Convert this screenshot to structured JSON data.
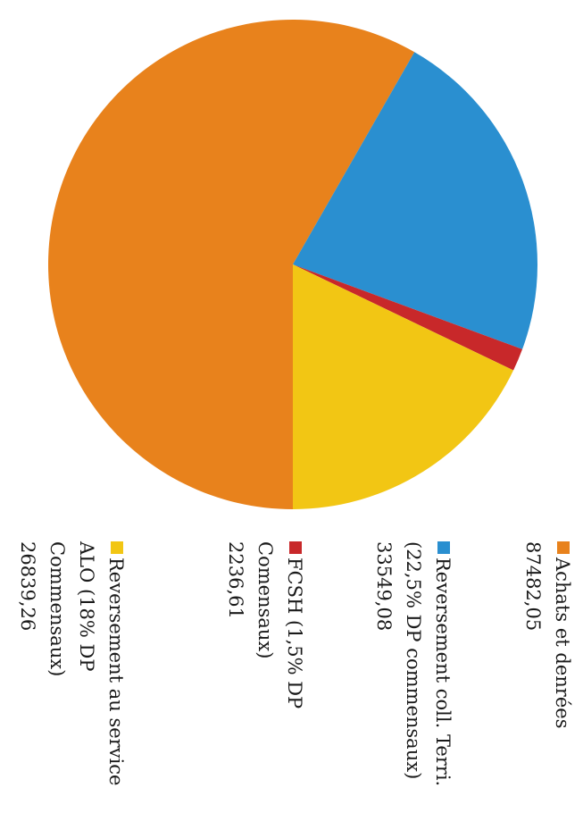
{
  "chart_data": {
    "type": "pie",
    "title": "",
    "legend_position": "bottom (rotated)",
    "slices": [
      {
        "label": "Achats et denrées",
        "value_text": "87482,05",
        "value": 87482.05,
        "color": "#e8821c"
      },
      {
        "label": "Reversement coll. Terri. (22,5% DP commensaux)",
        "value_text": "33549,08",
        "value": 33549.08,
        "color": "#2a8fd0"
      },
      {
        "label": "FCSH (1,5% DP Comensaux)",
        "value_text": "2236,61",
        "value": 2236.61,
        "color": "#c8282a"
      },
      {
        "label": "Reversement au service ALO (18% DP Commensaux)",
        "value_text": "26839,26",
        "value": 26839.26,
        "color": "#f2c614"
      }
    ]
  }
}
